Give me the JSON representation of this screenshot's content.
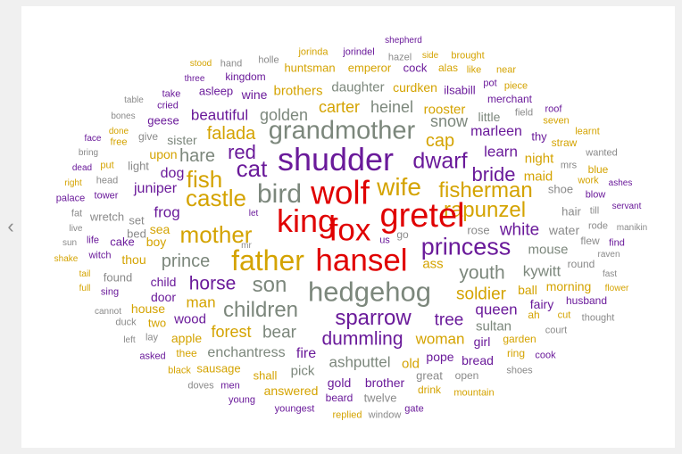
{
  "nav": {
    "prev_icon": "‹"
  },
  "colors": {
    "red": "#e00000",
    "purple": "#6a1a9a",
    "gold": "#d4a300",
    "gray": "#7c877c",
    "small": "#8a8a8a"
  },
  "words": [
    {
      "text": "shepherd",
      "color": "purple"
    },
    {
      "text": "jorinda",
      "color": "gold"
    },
    {
      "text": "jorindel",
      "color": "purple"
    },
    {
      "text": "brought",
      "color": "gold"
    },
    {
      "text": "stood",
      "color": "gold"
    },
    {
      "text": "hand",
      "color": "small"
    },
    {
      "text": "holle",
      "color": "small"
    },
    {
      "text": "hazel",
      "color": "small"
    },
    {
      "text": "side",
      "color": "gold"
    },
    {
      "text": "huntsman",
      "color": "gold"
    },
    {
      "text": "emperor",
      "color": "gold"
    },
    {
      "text": "cock",
      "color": "purple"
    },
    {
      "text": "alas",
      "color": "gold"
    },
    {
      "text": "like",
      "color": "gold"
    },
    {
      "text": "near",
      "color": "gold"
    },
    {
      "text": "three",
      "color": "purple"
    },
    {
      "text": "kingdom",
      "color": "purple"
    },
    {
      "text": "pot",
      "color": "purple"
    },
    {
      "text": "piece",
      "color": "gold"
    },
    {
      "text": "take",
      "color": "purple"
    },
    {
      "text": "asleep",
      "color": "purple"
    },
    {
      "text": "wine",
      "color": "purple"
    },
    {
      "text": "brothers",
      "color": "gold"
    },
    {
      "text": "daughter",
      "color": "gray"
    },
    {
      "text": "curdken",
      "color": "gold"
    },
    {
      "text": "ilsabill",
      "color": "purple"
    },
    {
      "text": "merchant",
      "color": "purple"
    },
    {
      "text": "table",
      "color": "small"
    },
    {
      "text": "cried",
      "color": "purple"
    },
    {
      "text": "roof",
      "color": "purple"
    },
    {
      "text": "carter",
      "color": "gold"
    },
    {
      "text": "heinel",
      "color": "gray"
    },
    {
      "text": "rooster",
      "color": "gold"
    },
    {
      "text": "bones",
      "color": "small"
    },
    {
      "text": "geese",
      "color": "purple"
    },
    {
      "text": "beautiful",
      "color": "purple"
    },
    {
      "text": "golden",
      "color": "gray"
    },
    {
      "text": "snow",
      "color": "gray"
    },
    {
      "text": "little",
      "color": "gray"
    },
    {
      "text": "field",
      "color": "small"
    },
    {
      "text": "seven",
      "color": "gold"
    },
    {
      "text": "done",
      "color": "gold"
    },
    {
      "text": "give",
      "color": "small"
    },
    {
      "text": "learnt",
      "color": "gold"
    },
    {
      "text": "face",
      "color": "purple"
    },
    {
      "text": "free",
      "color": "gold"
    },
    {
      "text": "sister",
      "color": "gray"
    },
    {
      "text": "grandmother",
      "color": "gray"
    },
    {
      "text": "cap",
      "color": "gold"
    },
    {
      "text": "marleen",
      "color": "purple"
    },
    {
      "text": "thy",
      "color": "purple"
    },
    {
      "text": "straw",
      "color": "gold"
    },
    {
      "text": "falada",
      "color": "gold"
    },
    {
      "text": "bring",
      "color": "small"
    },
    {
      "text": "upon",
      "color": "gold"
    },
    {
      "text": "red",
      "color": "purple"
    },
    {
      "text": "shudder",
      "color": "purple"
    },
    {
      "text": "learn",
      "color": "purple"
    },
    {
      "text": "wanted",
      "color": "small"
    },
    {
      "text": "hare",
      "color": "gray"
    },
    {
      "text": "dwarf",
      "color": "purple"
    },
    {
      "text": "night",
      "color": "gold"
    },
    {
      "text": "dead",
      "color": "purple"
    },
    {
      "text": "put",
      "color": "gold"
    },
    {
      "text": "light",
      "color": "small"
    },
    {
      "text": "cat",
      "color": "purple"
    },
    {
      "text": "mrs",
      "color": "small"
    },
    {
      "text": "blue",
      "color": "gold"
    },
    {
      "text": "head",
      "color": "small"
    },
    {
      "text": "dog",
      "color": "purple"
    },
    {
      "text": "bride",
      "color": "purple"
    },
    {
      "text": "maid",
      "color": "gold"
    },
    {
      "text": "work",
      "color": "gold"
    },
    {
      "text": "ashes",
      "color": "purple"
    },
    {
      "text": "right",
      "color": "gold"
    },
    {
      "text": "fish",
      "color": "gold"
    },
    {
      "text": "wife",
      "color": "gold"
    },
    {
      "text": "tower",
      "color": "purple"
    },
    {
      "text": "juniper",
      "color": "purple"
    },
    {
      "text": "mr",
      "color": "small"
    },
    {
      "text": "bird",
      "color": "gray"
    },
    {
      "text": "wolf",
      "color": "red"
    },
    {
      "text": "fisherman",
      "color": "gold"
    },
    {
      "text": "shoe",
      "color": "small"
    },
    {
      "text": "blow",
      "color": "purple"
    },
    {
      "text": "palace",
      "color": "purple"
    },
    {
      "text": "castle",
      "color": "gold"
    },
    {
      "text": "servant",
      "color": "purple"
    },
    {
      "text": "fat",
      "color": "small"
    },
    {
      "text": "frog",
      "color": "purple"
    },
    {
      "text": "rapunzel",
      "color": "gold"
    },
    {
      "text": "hair",
      "color": "small"
    },
    {
      "text": "till",
      "color": "small"
    },
    {
      "text": "wretch",
      "color": "small"
    },
    {
      "text": "let",
      "color": "purple"
    },
    {
      "text": "king",
      "color": "red"
    },
    {
      "text": "gretel",
      "color": "red"
    },
    {
      "text": "live",
      "color": "small"
    },
    {
      "text": "set",
      "color": "small"
    },
    {
      "text": "bed",
      "color": "small"
    },
    {
      "text": "rode",
      "color": "small"
    },
    {
      "text": "manikin",
      "color": "small"
    },
    {
      "text": "fox",
      "color": "red"
    },
    {
      "text": "white",
      "color": "purple"
    },
    {
      "text": "rose",
      "color": "small"
    },
    {
      "text": "water",
      "color": "small"
    },
    {
      "text": "sea",
      "color": "gold"
    },
    {
      "text": "mother",
      "color": "gold"
    },
    {
      "text": "go",
      "color": "small"
    },
    {
      "text": "raven",
      "color": "small"
    },
    {
      "text": "sun",
      "color": "small"
    },
    {
      "text": "life",
      "color": "purple"
    },
    {
      "text": "cake",
      "color": "purple"
    },
    {
      "text": "boy",
      "color": "gold"
    },
    {
      "text": "us",
      "color": "purple"
    },
    {
      "text": "flew",
      "color": "small"
    },
    {
      "text": "find",
      "color": "purple"
    },
    {
      "text": "princess",
      "color": "purple"
    },
    {
      "text": "witch",
      "color": "purple"
    },
    {
      "text": "shake",
      "color": "gold"
    },
    {
      "text": "thou",
      "color": "gold"
    },
    {
      "text": "mouse",
      "color": "gray"
    },
    {
      "text": "father",
      "color": "gold"
    },
    {
      "text": "hansel",
      "color": "red"
    },
    {
      "text": "round",
      "color": "small"
    },
    {
      "text": "prince",
      "color": "gray"
    },
    {
      "text": "fast",
      "color": "small"
    },
    {
      "text": "tail",
      "color": "gold"
    },
    {
      "text": "ass",
      "color": "gold"
    },
    {
      "text": "youth",
      "color": "gray"
    },
    {
      "text": "kywitt",
      "color": "gray"
    },
    {
      "text": "found",
      "color": "small"
    },
    {
      "text": "full",
      "color": "gold"
    },
    {
      "text": "flower",
      "color": "gold"
    },
    {
      "text": "horse",
      "color": "purple"
    },
    {
      "text": "son",
      "color": "gray"
    },
    {
      "text": "child",
      "color": "purple"
    },
    {
      "text": "morning",
      "color": "gold"
    },
    {
      "text": "sing",
      "color": "purple"
    },
    {
      "text": "hedgehog",
      "color": "gray"
    },
    {
      "text": "soldier",
      "color": "gold"
    },
    {
      "text": "ball",
      "color": "gold"
    },
    {
      "text": "husband",
      "color": "purple"
    },
    {
      "text": "door",
      "color": "purple"
    },
    {
      "text": "man",
      "color": "gold"
    },
    {
      "text": "cannot",
      "color": "small"
    },
    {
      "text": "house",
      "color": "gold"
    },
    {
      "text": "children",
      "color": "gray"
    },
    {
      "text": "queen",
      "color": "purple"
    },
    {
      "text": "fairy",
      "color": "purple"
    },
    {
      "text": "sparrow",
      "color": "purple"
    },
    {
      "text": "duck",
      "color": "small"
    },
    {
      "text": "thought",
      "color": "small"
    },
    {
      "text": "ah",
      "color": "gold"
    },
    {
      "text": "two",
      "color": "gold"
    },
    {
      "text": "wood",
      "color": "purple"
    },
    {
      "text": "tree",
      "color": "purple"
    },
    {
      "text": "cut",
      "color": "gold"
    },
    {
      "text": "sultan",
      "color": "gray"
    },
    {
      "text": "court",
      "color": "small"
    },
    {
      "text": "lay",
      "color": "small"
    },
    {
      "text": "forest",
      "color": "gold"
    },
    {
      "text": "bear",
      "color": "gray"
    },
    {
      "text": "left",
      "color": "small"
    },
    {
      "text": "apple",
      "color": "gold"
    },
    {
      "text": "dummling",
      "color": "purple"
    },
    {
      "text": "woman",
      "color": "gold"
    },
    {
      "text": "girl",
      "color": "purple"
    },
    {
      "text": "garden",
      "color": "gold"
    },
    {
      "text": "thee",
      "color": "gold"
    },
    {
      "text": "enchantress",
      "color": "gray"
    },
    {
      "text": "fire",
      "color": "purple"
    },
    {
      "text": "pope",
      "color": "purple"
    },
    {
      "text": "ring",
      "color": "gold"
    },
    {
      "text": "asked",
      "color": "purple"
    },
    {
      "text": "cook",
      "color": "purple"
    },
    {
      "text": "ashputtel",
      "color": "gray"
    },
    {
      "text": "bread",
      "color": "purple"
    },
    {
      "text": "old",
      "color": "gold"
    },
    {
      "text": "sausage",
      "color": "gold"
    },
    {
      "text": "black",
      "color": "gold"
    },
    {
      "text": "pick",
      "color": "gray"
    },
    {
      "text": "shoes",
      "color": "small"
    },
    {
      "text": "shall",
      "color": "gold"
    },
    {
      "text": "great",
      "color": "small"
    },
    {
      "text": "open",
      "color": "small"
    },
    {
      "text": "doves",
      "color": "small"
    },
    {
      "text": "gold",
      "color": "purple"
    },
    {
      "text": "brother",
      "color": "purple"
    },
    {
      "text": "men",
      "color": "purple"
    },
    {
      "text": "answered",
      "color": "gold"
    },
    {
      "text": "drink",
      "color": "gold"
    },
    {
      "text": "mountain",
      "color": "gold"
    },
    {
      "text": "beard",
      "color": "purple"
    },
    {
      "text": "twelve",
      "color": "small"
    },
    {
      "text": "young",
      "color": "purple"
    },
    {
      "text": "youngest",
      "color": "purple"
    },
    {
      "text": "gate",
      "color": "purple"
    },
    {
      "text": "replied",
      "color": "gold"
    },
    {
      "text": "window",
      "color": "small"
    }
  ]
}
